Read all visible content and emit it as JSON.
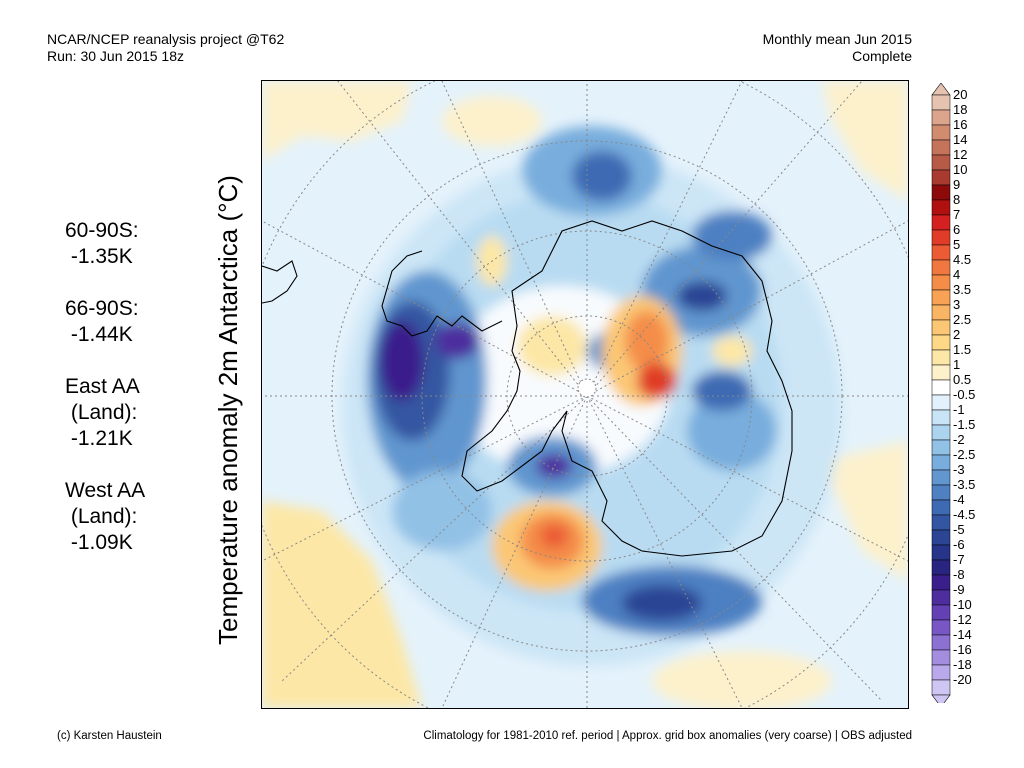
{
  "header": {
    "left_line1": "NCAR/NCEP reanalysis project @T62",
    "left_line2": "Run: 30 Jun 2015 18z",
    "right_line1": "Monthly mean Jun 2015",
    "right_line2": "Complete"
  },
  "axis_label": "Temperature anomaly 2m Antarctica (°C)",
  "stats": [
    {
      "lines": [
        "60-90S:",
        " -1.35K"
      ]
    },
    {
      "lines": [
        "66-90S:",
        " -1.44K"
      ]
    },
    {
      "lines": [
        "East AA",
        " (Land):",
        " -1.21K"
      ]
    },
    {
      "lines": [
        "West AA",
        " (Land):",
        " -1.09K"
      ]
    }
  ],
  "colorbar": {
    "labels": [
      "20",
      "18",
      "16",
      "14",
      "12",
      "10",
      "9",
      "8",
      "7",
      "6",
      "5",
      "4.5",
      "4",
      "3.5",
      "3",
      "2.5",
      "2",
      "1.5",
      "1",
      "0.5",
      "-0.5",
      "-1",
      "-1.5",
      "-2",
      "-2.5",
      "-3",
      "-3.5",
      "-4",
      "-4.5",
      "-5",
      "-6",
      "-7",
      "-8",
      "-9",
      "-10",
      "-12",
      "-14",
      "-16",
      "-18",
      "-20"
    ],
    "colors": [
      "#e6c2b0",
      "#dca48c",
      "#d18c70",
      "#c5735a",
      "#b85a48",
      "#a93a2f",
      "#8c0a0a",
      "#b01010",
      "#d42020",
      "#e03c28",
      "#eb5c35",
      "#f07840",
      "#f48d48",
      "#f7a255",
      "#f9b563",
      "#fbc774",
      "#fcd887",
      "#fde7a6",
      "#fdf1cc",
      "#ffffff",
      "#e2f1fb",
      "#c8e4f6",
      "#acd4ef",
      "#92c1e6",
      "#78addd",
      "#6196cf",
      "#4e80c2",
      "#3e6ab3",
      "#3456a2",
      "#2b4494",
      "#26348a",
      "#2a2481",
      "#3a1f8c",
      "#4e2d9e",
      "#6340b3",
      "#7857c4",
      "#8d71d2",
      "#a38ddf",
      "#baa9ea",
      "#d0c6f4"
    ]
  },
  "footer": {
    "left": "(c) Karsten Haustein",
    "right": "Climatology for 1981-2010 ref. period | Approx. grid box anomalies (very coarse) | OBS adjusted"
  }
}
